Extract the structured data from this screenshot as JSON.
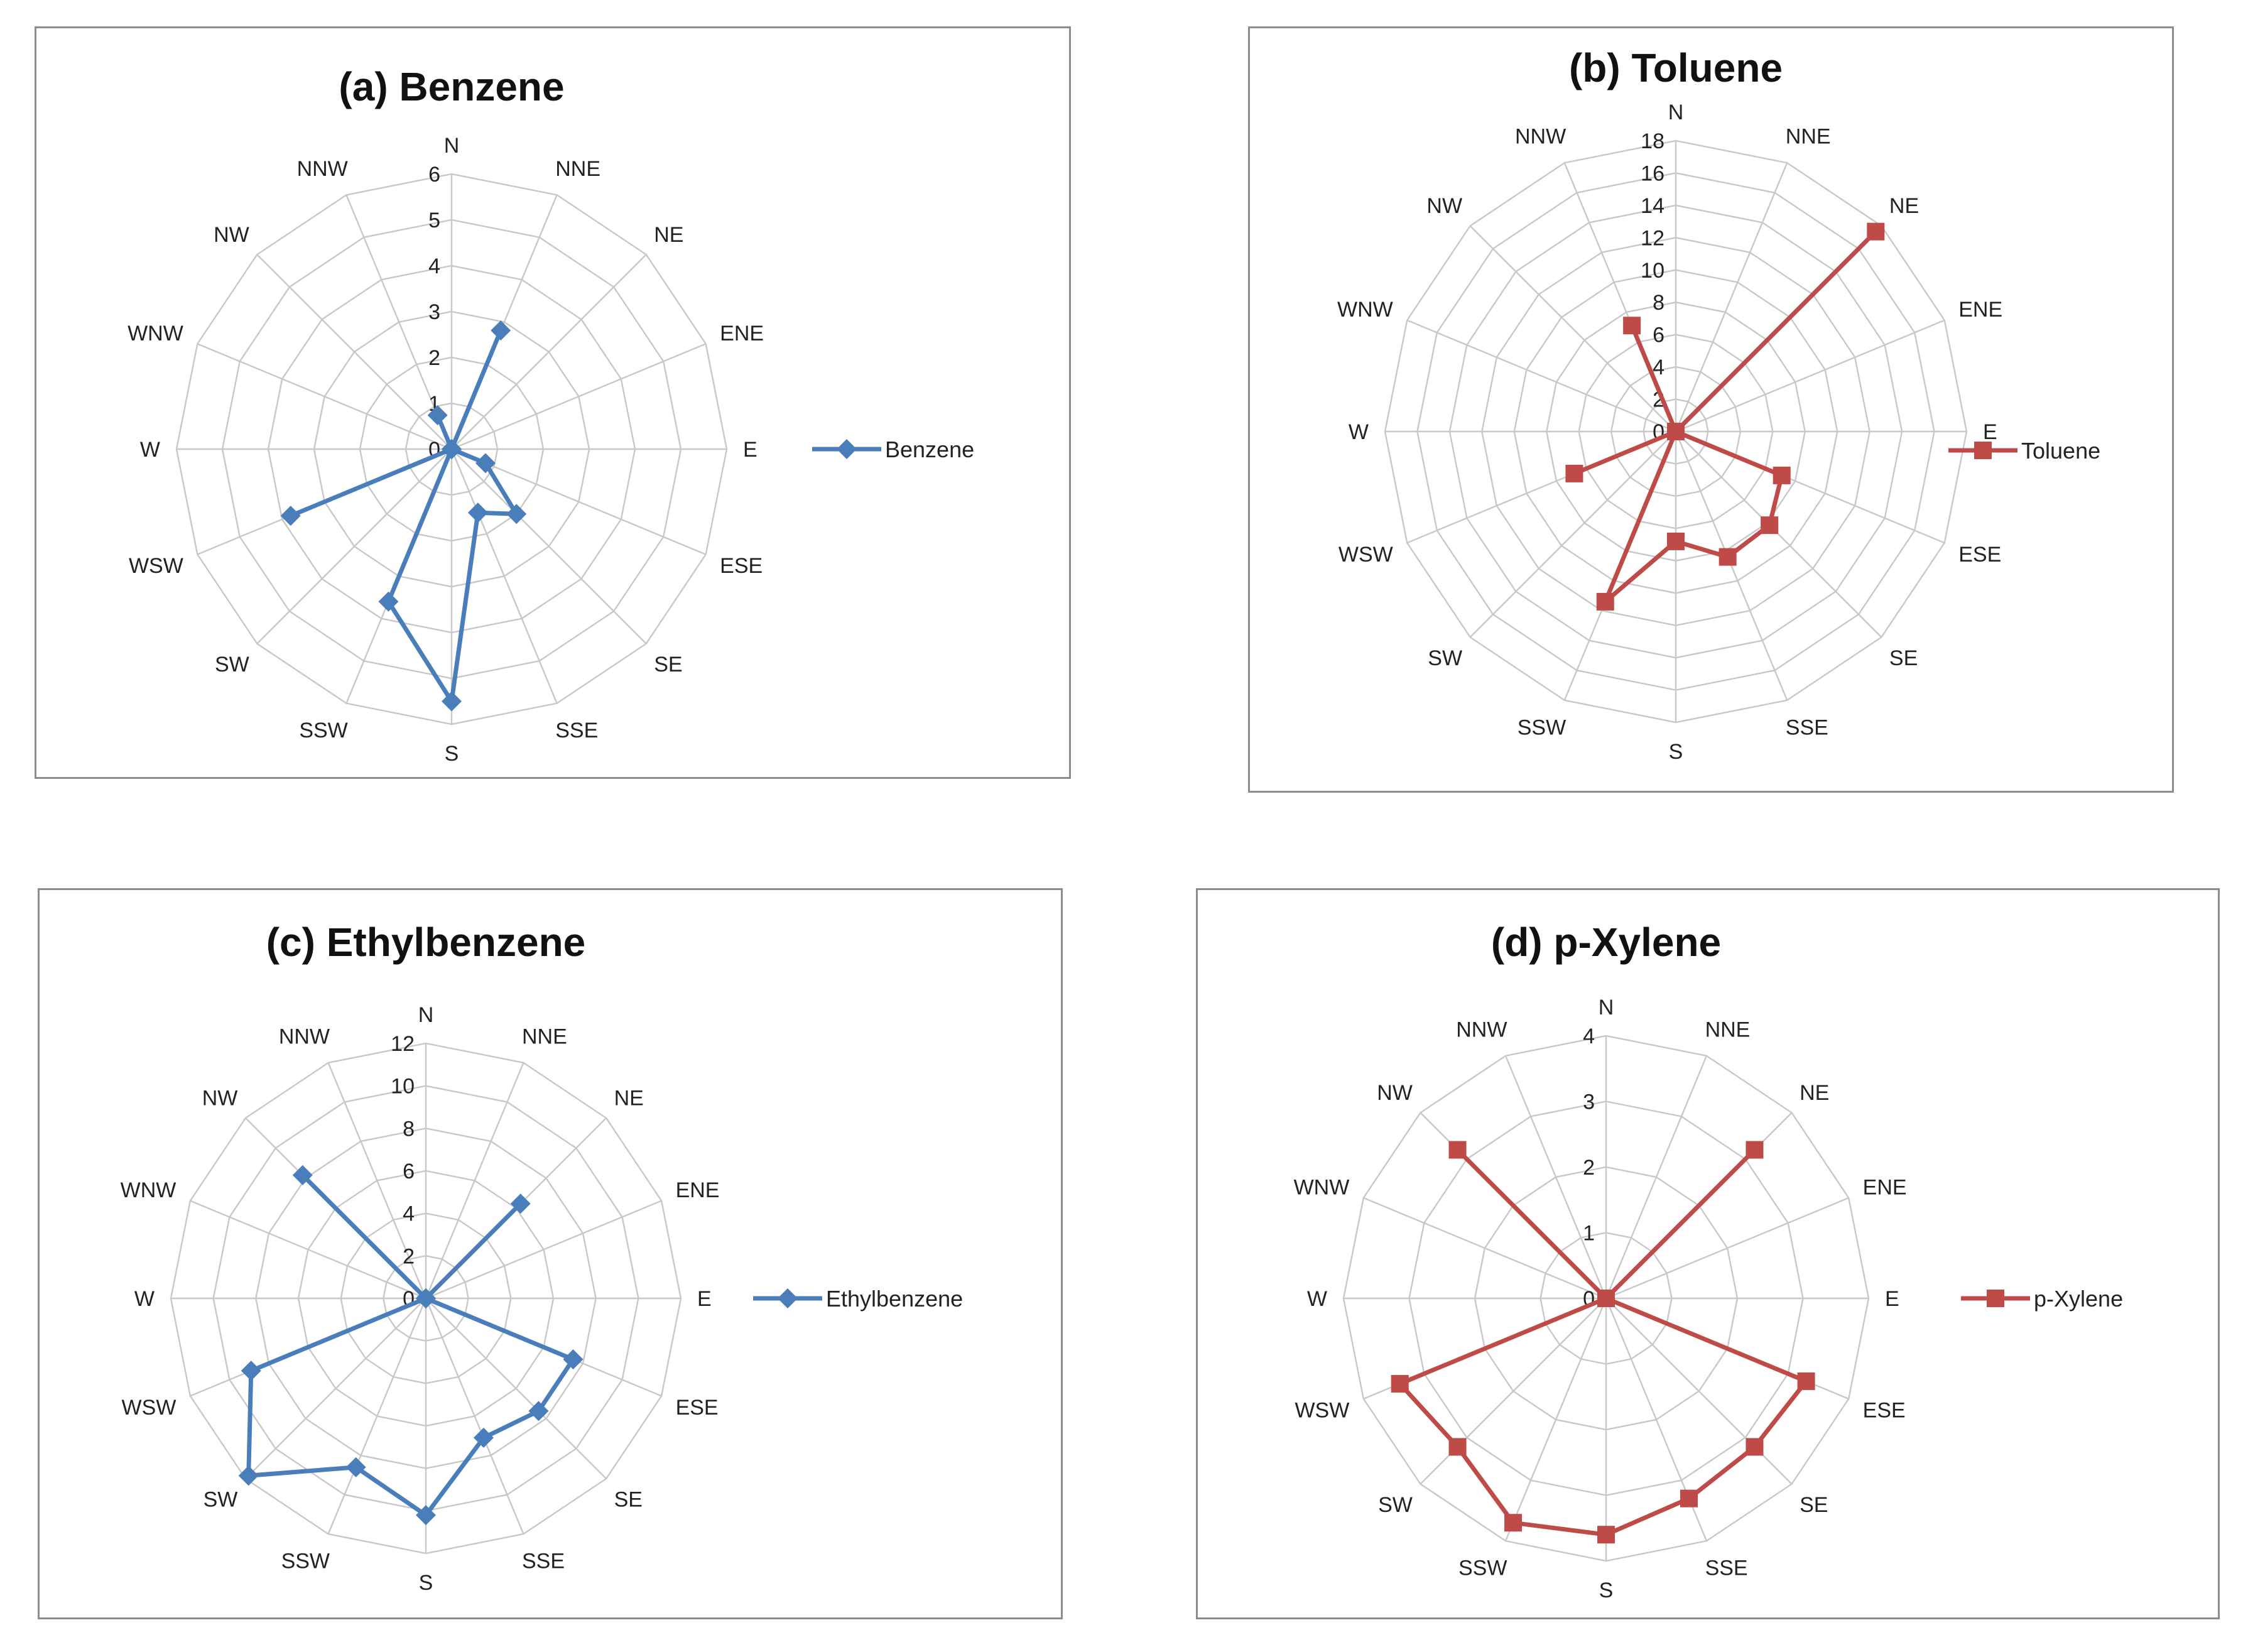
{
  "chart_data": [
    {
      "type": "radar",
      "title": "(a) Benzene",
      "directions": [
        "N",
        "NNE",
        "NE",
        "ENE",
        "E",
        "ESE",
        "SE",
        "SSE",
        "S",
        "SSW",
        "SW",
        "WSW",
        "W",
        "WNW",
        "NW",
        "NNW"
      ],
      "rmax": 6,
      "ticks": [
        0,
        1,
        2,
        3,
        4,
        5,
        6
      ],
      "series": [
        {
          "name": "Benzene",
          "values": [
            0,
            2.8,
            0,
            0,
            0,
            0.8,
            2,
            1.5,
            5.5,
            3.6,
            0,
            3.8,
            0,
            0,
            0,
            0.8
          ],
          "color": "#4a7ebb",
          "marker": "diamond"
        }
      ]
    },
    {
      "type": "radar",
      "title": "(b) Toluene",
      "directions": [
        "N",
        "NNE",
        "NE",
        "ENE",
        "E",
        "ESE",
        "SE",
        "SSE",
        "S",
        "SSW",
        "SW",
        "WSW",
        "W",
        "WNW",
        "NW",
        "NNW"
      ],
      "rmax": 18,
      "ticks": [
        0,
        2,
        4,
        6,
        8,
        10,
        12,
        14,
        16,
        18
      ],
      "series": [
        {
          "name": "Toluene",
          "values": [
            0,
            0,
            17.5,
            0,
            0,
            7.1,
            8.2,
            8.4,
            6.8,
            11.4,
            0,
            6.8,
            0,
            0,
            0,
            7.1
          ],
          "color": "#be4b48",
          "marker": "square"
        }
      ]
    },
    {
      "type": "radar",
      "title": "(c) Ethylbenzene",
      "directions": [
        "N",
        "NNE",
        "NE",
        "ENE",
        "E",
        "ESE",
        "SE",
        "SSE",
        "S",
        "SSW",
        "SW",
        "WSW",
        "W",
        "WNW",
        "NW",
        "NNW"
      ],
      "rmax": 12,
      "ticks": [
        0,
        2,
        4,
        6,
        8,
        10,
        12
      ],
      "series": [
        {
          "name": "Ethylbenzene",
          "values": [
            0,
            0,
            6.3,
            0,
            0,
            7.5,
            7.5,
            7.1,
            10.2,
            8.6,
            11.8,
            8.9,
            0,
            0,
            8.2,
            0
          ],
          "color": "#4a7ebb",
          "marker": "diamond"
        }
      ]
    },
    {
      "type": "radar",
      "title": "(d) p-Xylene",
      "directions": [
        "N",
        "NNE",
        "NE",
        "ENE",
        "E",
        "ESE",
        "SE",
        "SSE",
        "S",
        "SSW",
        "SW",
        "WSW",
        "W",
        "WNW",
        "NW",
        "NNW"
      ],
      "rmax": 4,
      "ticks": [
        0,
        1,
        2,
        3,
        4
      ],
      "series": [
        {
          "name": "p-Xylene",
          "values": [
            0,
            0,
            3.2,
            0,
            0,
            3.3,
            3.2,
            3.3,
            3.6,
            3.7,
            3.2,
            3.4,
            0,
            0,
            3.2,
            0
          ],
          "color": "#be4b48",
          "marker": "square"
        }
      ]
    }
  ]
}
